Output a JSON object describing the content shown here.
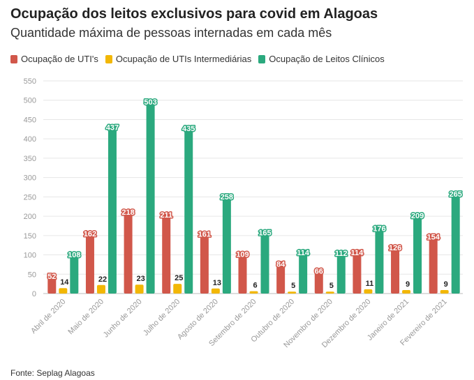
{
  "title": "Ocupação dos leitos exclusivos para covid em Alagoas",
  "subtitle": "Quantidade máxima de pessoas internadas em cada mês",
  "source": "Fonte: Seplag Alagoas",
  "colors": {
    "uti": "#d1574a",
    "intermediaria": "#f2b705",
    "clinicos": "#2ba97e"
  },
  "chart_data": {
    "type": "bar",
    "categories": [
      "Abril de 2020",
      "Maio de 2020",
      "Junho de 2020",
      "Julho de 2020",
      "Agosto de 2020",
      "Setembro de 2020",
      "Outubro de 2020",
      "Novembro de 2020",
      "Dezembro de 2020",
      "Janeiro de 2021",
      "Fevereiro de 2021"
    ],
    "series": [
      {
        "name": "Ocupação de UTI's",
        "color": "#d1574a",
        "values": [
          52,
          162,
          218,
          211,
          161,
          109,
          84,
          66,
          114,
          126,
          154
        ]
      },
      {
        "name": "Ocupação de UTIs Intermediárias",
        "color": "#f2b705",
        "values": [
          14,
          22,
          23,
          25,
          13,
          6,
          5,
          5,
          11,
          9,
          9
        ]
      },
      {
        "name": "Ocupação de Leitos Clínicos",
        "color": "#2ba97e",
        "values": [
          108,
          437,
          503,
          435,
          258,
          165,
          114,
          112,
          176,
          209,
          265
        ]
      }
    ],
    "yticks": [
      "0",
      "50",
      "100",
      "150",
      "200",
      "250",
      "300",
      "350",
      "400",
      "450",
      "500",
      "550"
    ],
    "ylim": [
      0,
      550
    ],
    "grid": true,
    "legend_position": "top-left"
  }
}
